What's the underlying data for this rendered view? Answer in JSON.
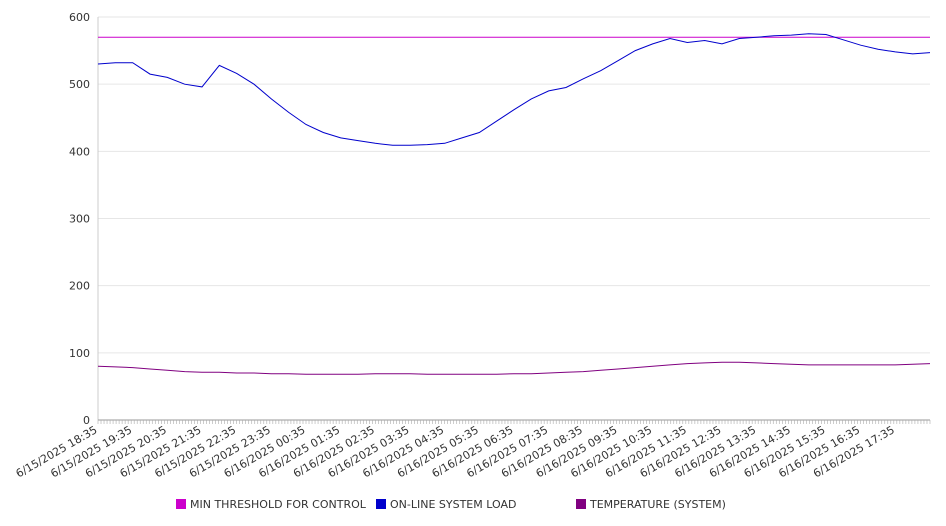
{
  "chart_data": {
    "type": "line",
    "title": "",
    "xlabel": "",
    "ylabel": "",
    "ylim": [
      0,
      600
    ],
    "yticks": [
      0,
      100,
      200,
      300,
      400,
      500,
      600
    ],
    "grid": true,
    "legend_position": "bottom",
    "x_tick_labels": [
      "6/15/2025 18:35",
      "6/15/2025 19:35",
      "6/15/2025 20:35",
      "6/15/2025 21:35",
      "6/15/2025 22:35",
      "6/15/2025 23:35",
      "6/16/2025 00:35",
      "6/16/2025 01:35",
      "6/16/2025 02:35",
      "6/16/2025 03:35",
      "6/16/2025 04:35",
      "6/16/2025 05:35",
      "6/16/2025 06:35",
      "6/16/2025 07:35",
      "6/16/2025 08:35",
      "6/16/2025 09:35",
      "6/16/2025 10:35",
      "6/16/2025 11:35",
      "6/16/2025 12:35",
      "6/16/2025 13:35",
      "6/16/2025 14:35",
      "6/16/2025 15:35",
      "6/16/2025 16:35",
      "6/16/2025 17:35"
    ],
    "x": [
      "6/15/2025 18:35",
      "6/15/2025 19:05",
      "6/15/2025 19:35",
      "6/15/2025 20:05",
      "6/15/2025 20:35",
      "6/15/2025 21:05",
      "6/15/2025 21:20",
      "6/15/2025 21:35",
      "6/15/2025 22:05",
      "6/15/2025 22:35",
      "6/15/2025 23:05",
      "6/15/2025 23:35",
      "6/16/2025 00:05",
      "6/16/2025 00:35",
      "6/16/2025 01:05",
      "6/16/2025 01:35",
      "6/16/2025 02:05",
      "6/16/2025 02:35",
      "6/16/2025 03:05",
      "6/16/2025 03:35",
      "6/16/2025 04:05",
      "6/16/2025 04:35",
      "6/16/2025 05:05",
      "6/16/2025 05:35",
      "6/16/2025 06:05",
      "6/16/2025 06:35",
      "6/16/2025 07:05",
      "6/16/2025 07:35",
      "6/16/2025 08:05",
      "6/16/2025 08:35",
      "6/16/2025 09:05",
      "6/16/2025 09:35",
      "6/16/2025 10:05",
      "6/16/2025 10:35",
      "6/16/2025 11:05",
      "6/16/2025 11:35",
      "6/16/2025 12:05",
      "6/16/2025 12:35",
      "6/16/2025 13:05",
      "6/16/2025 13:35",
      "6/16/2025 14:05",
      "6/16/2025 14:35",
      "6/16/2025 15:05",
      "6/16/2025 15:35",
      "6/16/2025 16:05",
      "6/16/2025 16:35",
      "6/16/2025 17:05",
      "6/16/2025 17:35",
      "6/16/2025 18:05"
    ],
    "series": [
      {
        "name": "MIN THRESHOLD FOR CONTROL",
        "color": "#cc00cc",
        "values": [
          570,
          570,
          570,
          570,
          570,
          570,
          570,
          570,
          570,
          570,
          570,
          570,
          570,
          570,
          570,
          570,
          570,
          570,
          570,
          570,
          570,
          570,
          570,
          570,
          570,
          570,
          570,
          570,
          570,
          570,
          570,
          570,
          570,
          570,
          570,
          570,
          570,
          570,
          570,
          570,
          570,
          570,
          570,
          570,
          570,
          570,
          570,
          570,
          570
        ]
      },
      {
        "name": "ON-LINE SYSTEM LOAD",
        "color": "#0000cc",
        "values": [
          530,
          532,
          532,
          515,
          510,
          500,
          496,
          528,
          516,
          500,
          478,
          458,
          440,
          428,
          420,
          416,
          412,
          409,
          409,
          410,
          412,
          420,
          428,
          445,
          462,
          478,
          490,
          495,
          508,
          520,
          535,
          550,
          560,
          568,
          562,
          565,
          560,
          568,
          570,
          572,
          573,
          575,
          574,
          566,
          558,
          552,
          548,
          545,
          547
        ]
      },
      {
        "name": "TEMPERATURE (SYSTEM)",
        "color": "#800080",
        "values": [
          80,
          79,
          78,
          76,
          74,
          72,
          71,
          71,
          70,
          70,
          69,
          69,
          68,
          68,
          68,
          68,
          69,
          69,
          69,
          68,
          68,
          68,
          68,
          68,
          69,
          69,
          70,
          71,
          72,
          74,
          76,
          78,
          80,
          82,
          84,
          85,
          86,
          86,
          85,
          84,
          83,
          82,
          82,
          82,
          82,
          82,
          82,
          83,
          84
        ]
      }
    ]
  }
}
